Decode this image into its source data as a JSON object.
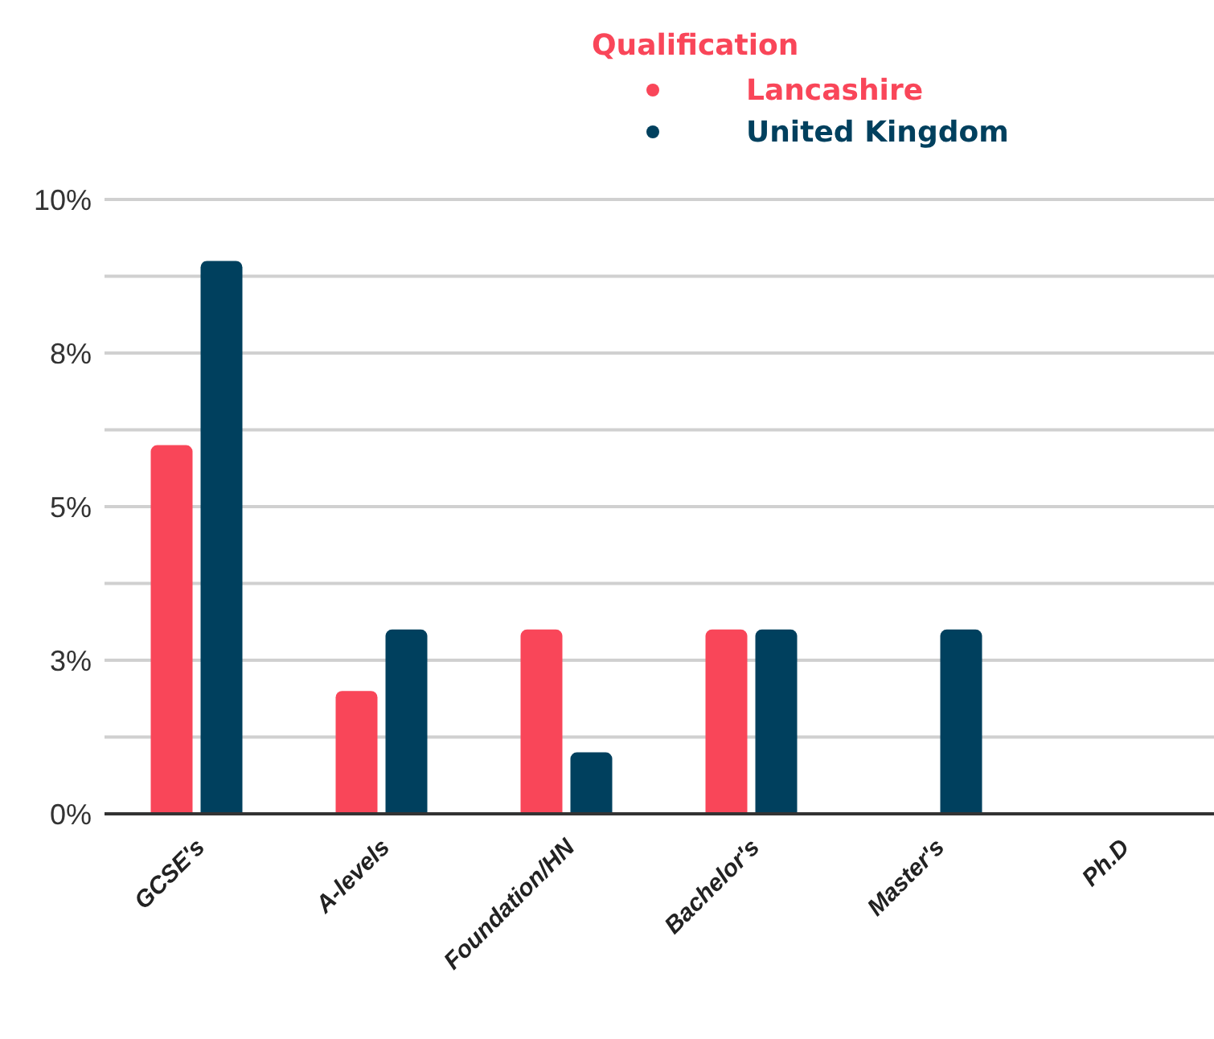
{
  "chart_data": {
    "type": "bar",
    "legend_title": "Qualification",
    "categories": [
      "GCSE's",
      "A-levels",
      "Foundation/HN",
      "Bachelor's",
      "Master's",
      "Ph.D"
    ],
    "series": [
      {
        "name": "Lancashire",
        "color": "#f94659",
        "values": [
          6,
          2,
          3,
          3,
          0,
          0
        ]
      },
      {
        "name": "United Kingdom",
        "color": "#00405e",
        "values": [
          9,
          3,
          1,
          3,
          3,
          0
        ]
      }
    ],
    "ylim": [
      0,
      10
    ],
    "yticks": [
      {
        "value": 0,
        "label": "0%"
      },
      {
        "value": 1.25,
        "label": null
      },
      {
        "value": 2.5,
        "label": "3%"
      },
      {
        "value": 3.75,
        "label": null
      },
      "5%",
      {
        "value": 6.25,
        "label": null
      },
      {
        "value": 7.5,
        "label": "8%"
      },
      {
        "value": 8.75,
        "label": null
      },
      {
        "value": 10,
        "label": "10%"
      }
    ],
    "grid": "y",
    "legend": "top"
  }
}
